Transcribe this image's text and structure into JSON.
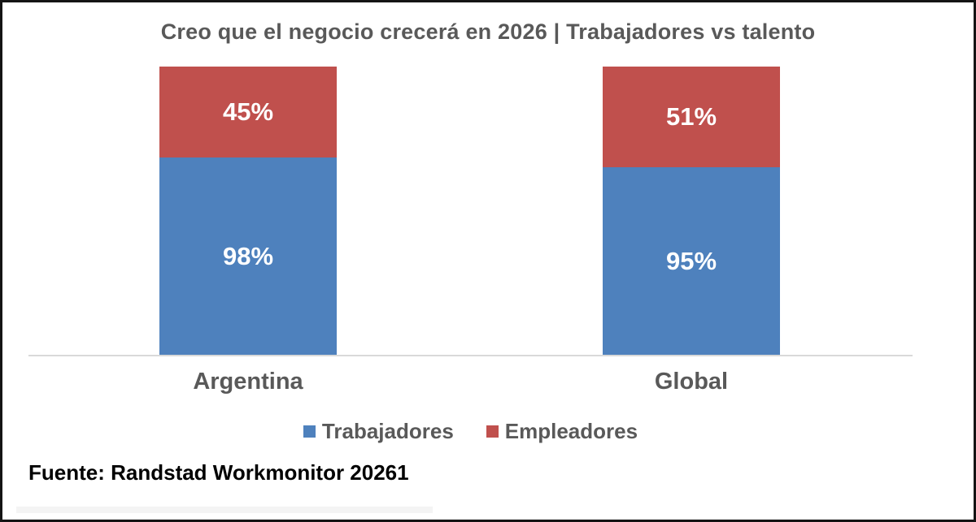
{
  "chart_data": {
    "type": "bar",
    "subtype": "stacked-vertical-column",
    "title": "Creo que el negocio crecerá en 2026 | Trabajadores vs talento",
    "categories": [
      "Argentina",
      "Global"
    ],
    "series": [
      {
        "name": "Trabajadores",
        "color": "#4E81BD",
        "values": [
          98,
          95
        ],
        "labels": [
          "98%",
          "95%"
        ]
      },
      {
        "name": "Empleadores",
        "color": "#C0504D",
        "values": [
          45,
          51
        ],
        "labels": [
          "45%",
          "51%"
        ]
      }
    ],
    "legend_position": "bottom",
    "grid": false,
    "x_axis_baseline": true,
    "source": "Fuente: Randstad Workmonitor 20261"
  },
  "colors": {
    "series_blue": "#4E81BD",
    "series_red": "#C0504D",
    "text_gray": "#595959",
    "axis_line": "#D9D9D9",
    "label_white": "#FFFFFF",
    "source_text": "#000000",
    "frame_border": "#141414"
  }
}
